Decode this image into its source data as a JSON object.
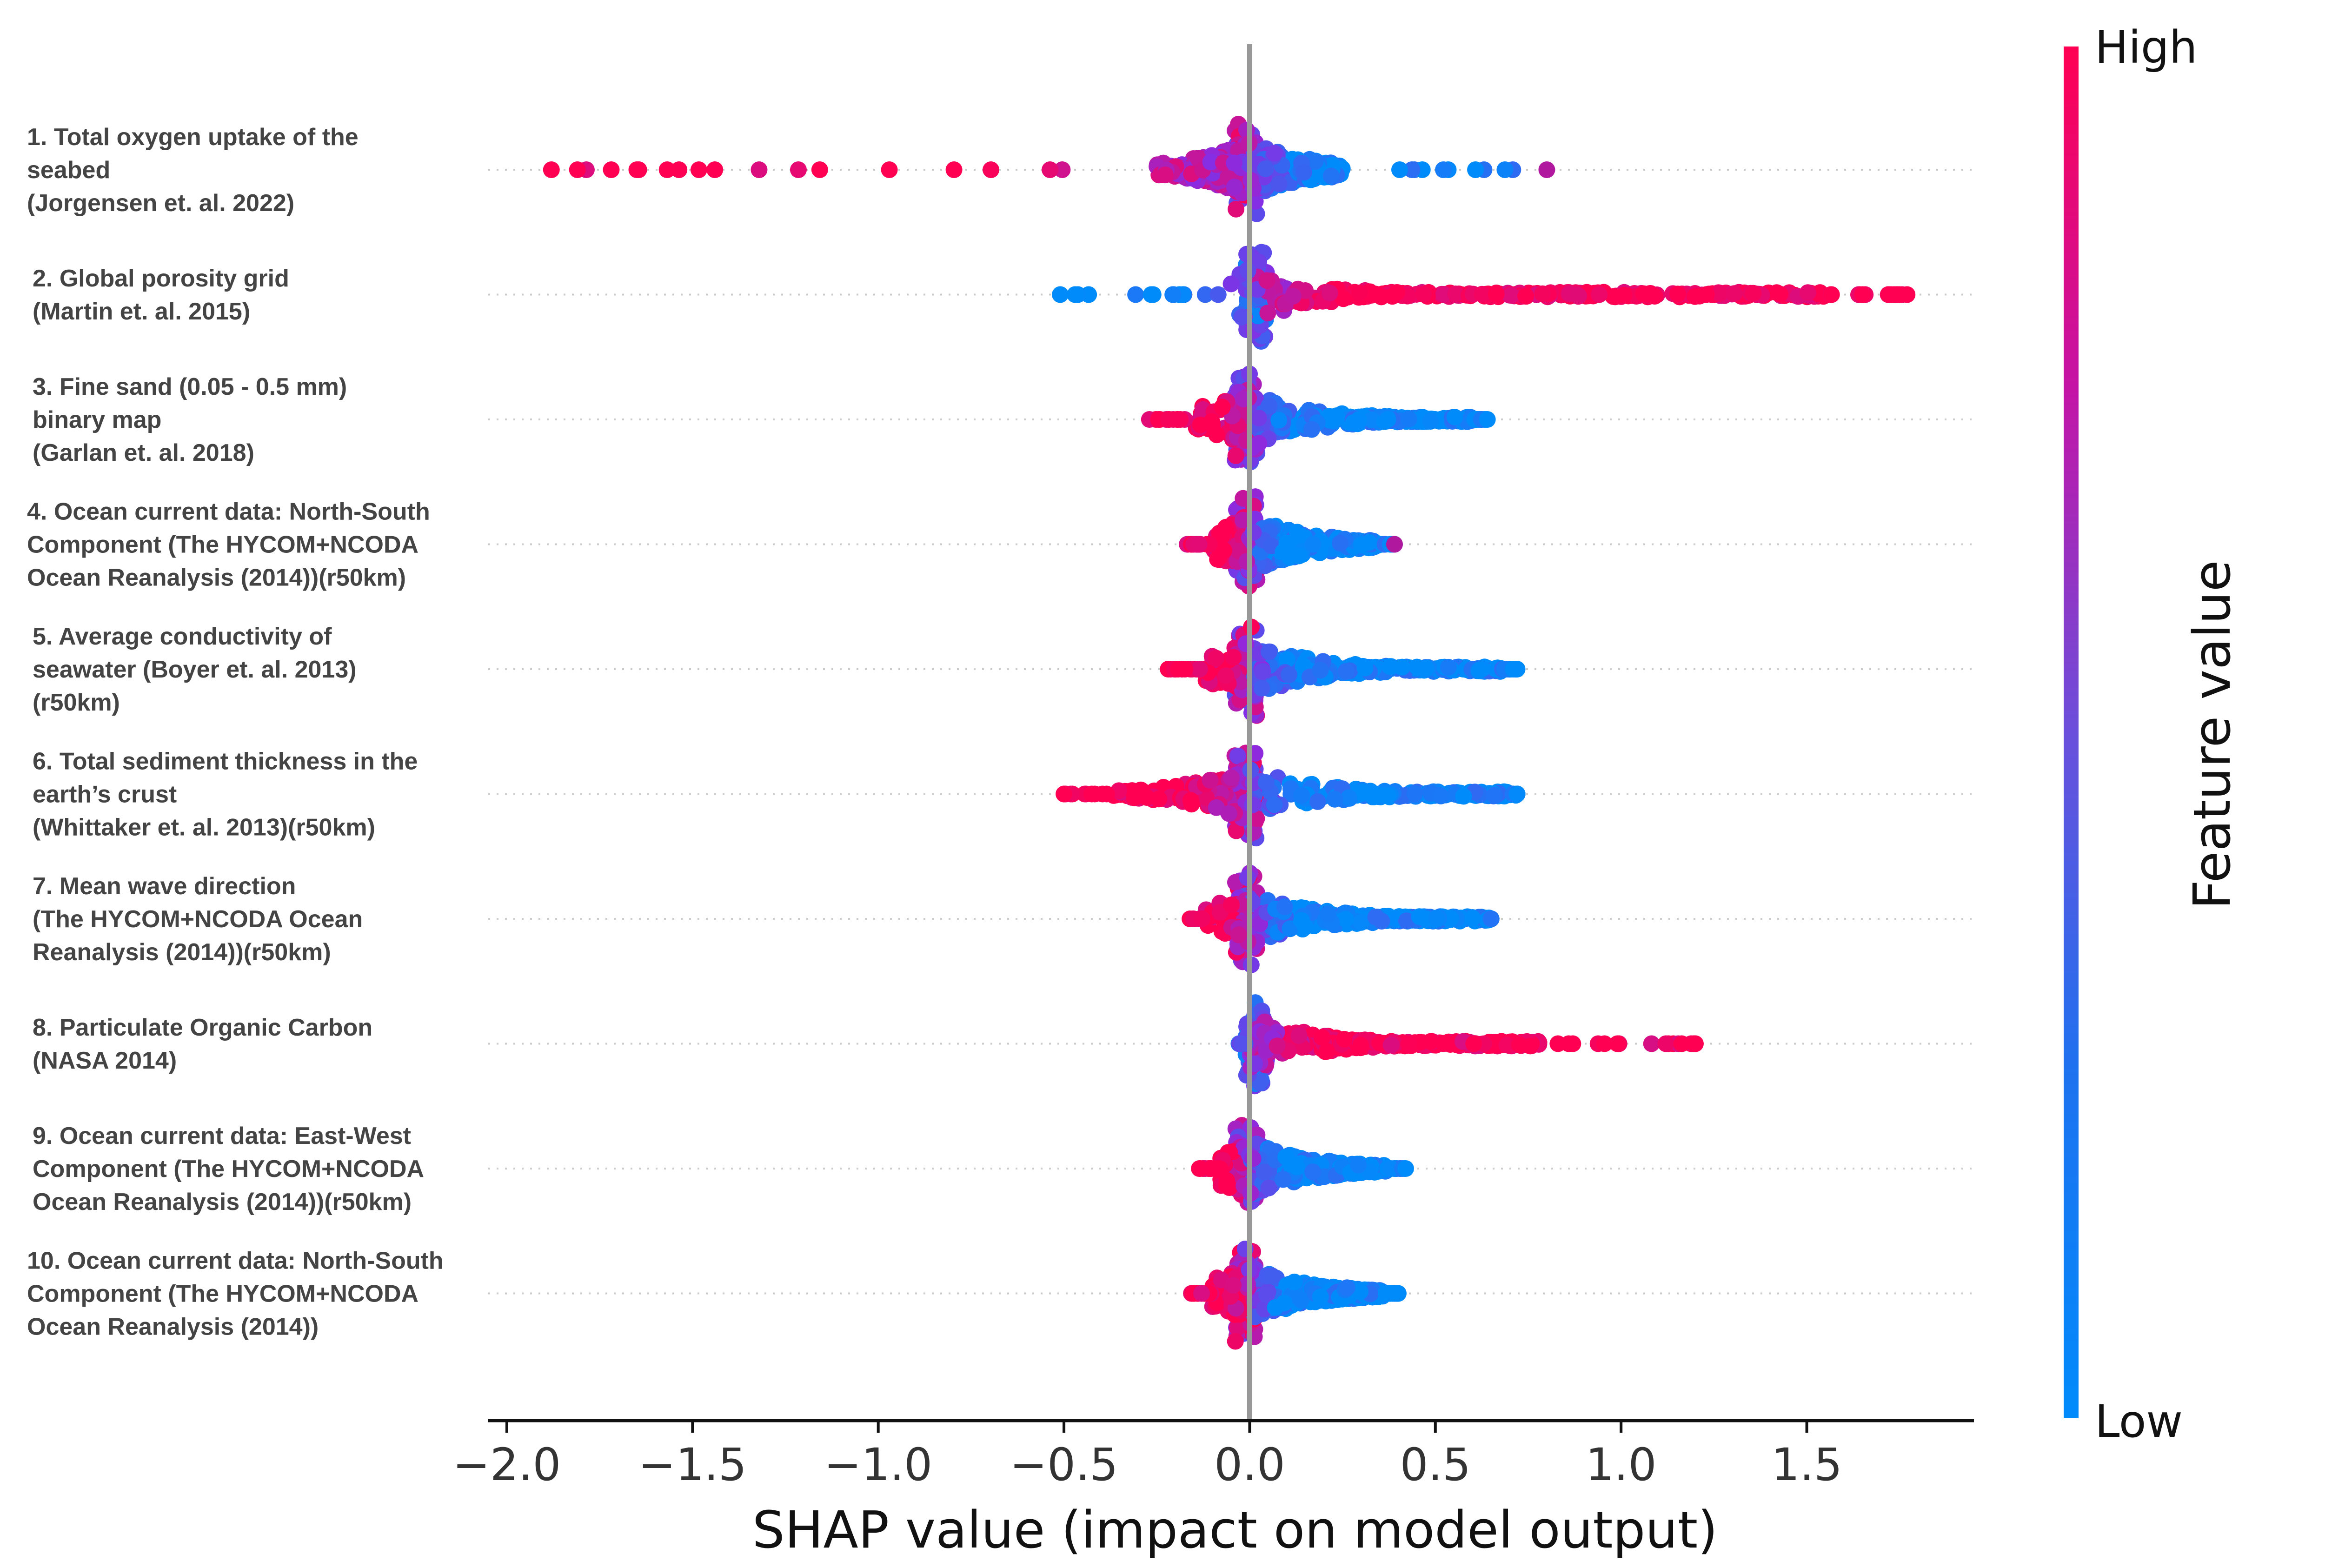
{
  "chart_data": {
    "type": "scatter",
    "subtype": "shap-beeswarm",
    "xlabel": "SHAP value (impact on model output)",
    "xlim": [
      -2.05,
      1.95
    ],
    "xticks": [
      -2.0,
      -1.5,
      -1.0,
      -0.5,
      0.0,
      0.5,
      1.0,
      1.5
    ],
    "xtick_labels": [
      "−2.0",
      "−1.5",
      "−1.0",
      "−0.5",
      "0.0",
      "0.5",
      "1.0",
      "1.5"
    ],
    "grid": false,
    "zero_line": true,
    "colorbar": {
      "title": "Feature value",
      "high_label": "High",
      "low_label": "Low",
      "high_color": "#ff0052",
      "mid_color": "#8a2be2",
      "low_color": "#008bfb"
    },
    "features": [
      {
        "label_lines": [
          "1. Total oxygen uptake of the",
          "seabed",
          "(Jorgensen et. al. 2022)"
        ],
        "shap_range": [
          -1.88,
          0.8
        ],
        "dense_range": [
          -0.25,
          0.25
        ],
        "high_value_direction": "negative",
        "outliers": [
          {
            "x": -1.88,
            "c": "high"
          },
          {
            "x": -1.81,
            "c": "high"
          },
          {
            "x": -1.65,
            "c": "high"
          },
          {
            "x": -1.44,
            "c": "high"
          },
          {
            "x": 0.8,
            "c": "mid"
          }
        ]
      },
      {
        "label_lines": [
          "2. Global porosity grid",
          "(Martin et. al. 2015)"
        ],
        "shap_range": [
          -0.51,
          1.77
        ],
        "dense_range": [
          -0.05,
          1.55
        ],
        "high_value_direction": "positive",
        "outliers": [
          {
            "x": -0.51,
            "c": "low"
          },
          {
            "x": -0.47,
            "c": "low"
          },
          {
            "x": -0.26,
            "c": "low"
          },
          {
            "x": 1.65,
            "c": "high"
          },
          {
            "x": 1.72,
            "c": "high"
          },
          {
            "x": 1.77,
            "c": "high"
          }
        ]
      },
      {
        "label_lines": [
          "3. Fine sand (0.05 - 0.5 mm)",
          "binary map",
          "(Garlan et. al. 2018)"
        ],
        "shap_range": [
          -0.27,
          0.64
        ],
        "dense_range": [
          -0.15,
          0.6
        ],
        "high_value_direction": "negative",
        "outliers": [
          {
            "x": 0.64,
            "c": "low"
          }
        ]
      },
      {
        "label_lines": [
          "4. Ocean current data: North-South",
          "Component (The HYCOM+NCODA",
          "Ocean Reanalysis (2014))(r50km)"
        ],
        "shap_range": [
          -0.17,
          0.39
        ],
        "dense_range": [
          -0.1,
          0.35
        ],
        "high_value_direction": "negative",
        "outliers": [
          {
            "x": 0.39,
            "c": "mid"
          }
        ]
      },
      {
        "label_lines": [
          "5. Average conductivity of",
          "seawater (Boyer et. al. 2013)",
          "(r50km)"
        ],
        "shap_range": [
          -0.22,
          0.72
        ],
        "dense_range": [
          -0.12,
          0.68
        ],
        "high_value_direction": "negative",
        "outliers": [
          {
            "x": 0.72,
            "c": "low"
          }
        ]
      },
      {
        "label_lines": [
          "6. Total sediment thickness in the",
          "earth’s crust",
          "(Whittaker et. al. 2013)(r50km)"
        ],
        "shap_range": [
          -0.5,
          0.72
        ],
        "dense_range": [
          -0.37,
          0.72
        ],
        "high_value_direction": "negative",
        "outliers": [
          {
            "x": -0.5,
            "c": "high"
          }
        ]
      },
      {
        "label_lines": [
          "7. Mean wave direction",
          "(The HYCOM+NCODA Ocean",
          "Reanalysis (2014))(r50km)"
        ],
        "shap_range": [
          -0.18,
          0.65
        ],
        "dense_range": [
          -0.12,
          0.65
        ],
        "high_value_direction": "negative",
        "outliers": []
      },
      {
        "label_lines": [
          "8. Particulate Organic Carbon",
          "(NASA 2014)"
        ],
        "shap_range": [
          -0.03,
          1.2
        ],
        "dense_range": [
          0.0,
          0.78
        ],
        "high_value_direction": "positive",
        "outliers": [
          {
            "x": 0.83,
            "c": "high"
          },
          {
            "x": 0.87,
            "c": "high"
          },
          {
            "x": 0.99,
            "c": "high"
          },
          {
            "x": 1.2,
            "c": "high"
          }
        ]
      },
      {
        "label_lines": [
          " 9. Ocean current data: East-West",
          "Component (The HYCOM+NCODA",
          "Ocean Reanalysis (2014))(r50km)"
        ],
        "shap_range": [
          -0.16,
          0.42
        ],
        "dense_range": [
          -0.08,
          0.37
        ],
        "high_value_direction": "negative",
        "outliers": [
          {
            "x": 0.42,
            "c": "low"
          }
        ]
      },
      {
        "label_lines": [
          "10. Ocean current data: North-South",
          "Component (The HYCOM+NCODA",
          "Ocean Reanalysis (2014))"
        ],
        "shap_range": [
          -0.16,
          0.4
        ],
        "dense_range": [
          -0.1,
          0.36
        ],
        "high_value_direction": "negative",
        "outliers": [
          {
            "x": 0.38,
            "c": "low"
          },
          {
            "x": 0.4,
            "c": "low"
          }
        ]
      }
    ]
  }
}
